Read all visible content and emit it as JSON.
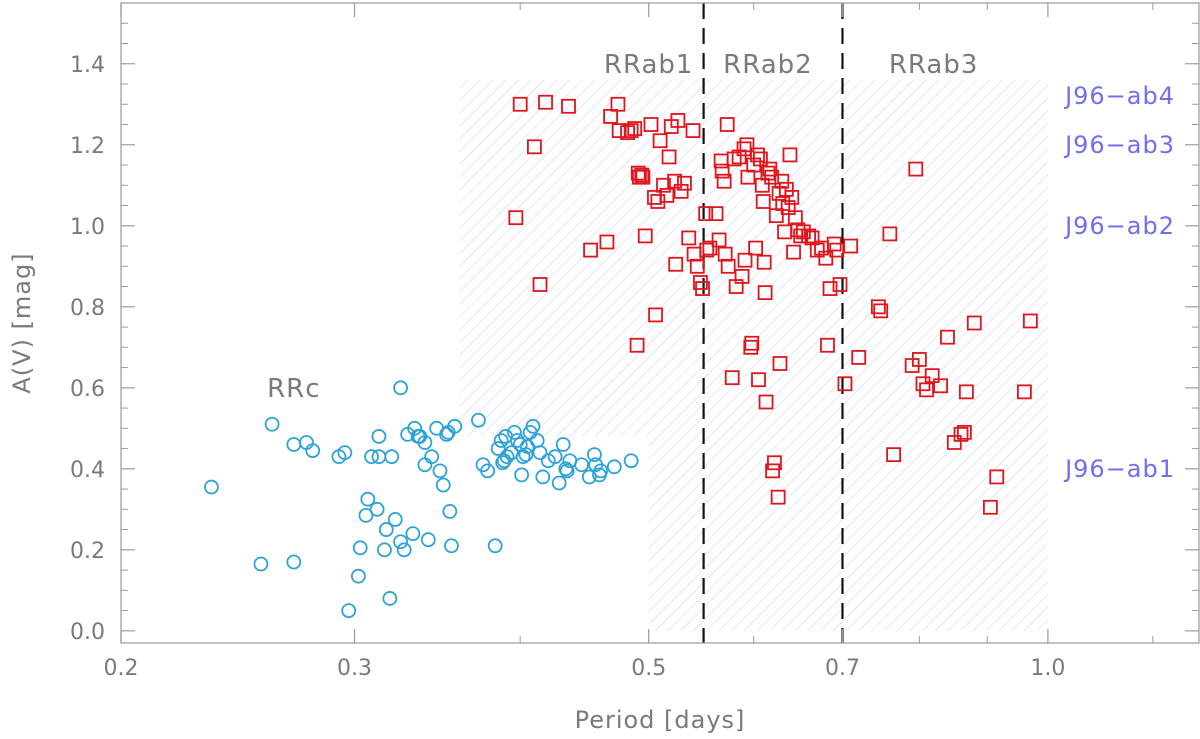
{
  "chart_data": {
    "type": "scatter",
    "xlabel": "Period [days]",
    "ylabel": "A(V) [mag]",
    "x_scale": "log",
    "xlim": [
      0.2,
      1.3
    ],
    "ylim": [
      -0.03,
      1.55
    ],
    "x_ticks": [
      0.2,
      0.3,
      0.5,
      0.7,
      1.0
    ],
    "x_tick_labels": [
      "0.2",
      "0.3",
      "0.5",
      "0.7",
      "1.0"
    ],
    "y_ticks": [
      0.0,
      0.2,
      0.4,
      0.6,
      0.8,
      1.0,
      1.2,
      1.4
    ],
    "y_tick_labels": [
      "0.0",
      "0.2",
      "0.4",
      "0.6",
      "0.8",
      "1.0",
      "1.2",
      "1.4"
    ],
    "vlines": [
      0.55,
      0.7
    ],
    "class_labels": [
      {
        "text": "RRab1",
        "x": 0.5,
        "y": 1.4
      },
      {
        "text": "RRab2",
        "x": 0.615,
        "y": 1.4
      },
      {
        "text": "RRab3",
        "x": 0.82,
        "y": 1.4
      },
      {
        "text": "RRc",
        "x": 0.27,
        "y": 0.6
      }
    ],
    "regions": [
      {
        "label": "J96−ab4",
        "x": [
          0.36,
          1.0
        ],
        "y": [
          1.24,
          1.36
        ],
        "label_y": 1.32
      },
      {
        "label": "J96−ab3",
        "x": [
          0.36,
          1.0
        ],
        "y": [
          1.12,
          1.24
        ],
        "label_y": 1.2
      },
      {
        "label": "J96−ab2",
        "x": [
          0.36,
          1.0
        ],
        "y": [
          0.8,
          1.12
        ],
        "label_y": 1.0
      },
      {
        "label": "J96−ab1",
        "x": [
          0.36,
          1.0
        ],
        "y": [
          0.8,
          1.12
        ],
        "label_y": 0.4
      }
    ],
    "ab1_region": {
      "x_from": 0.36,
      "x_knee": 0.5,
      "x_to": 1.0,
      "y_top": 0.8,
      "y_knee": 0.48,
      "y_bottom": 0.0
    },
    "series": [
      {
        "marker": "circle",
        "color": "#2ca3d8",
        "points": [
          [
            0.234,
            0.355
          ],
          [
            0.255,
            0.165
          ],
          [
            0.26,
            0.51
          ],
          [
            0.27,
            0.17
          ],
          [
            0.27,
            0.46
          ],
          [
            0.276,
            0.465
          ],
          [
            0.279,
            0.445
          ],
          [
            0.292,
            0.43
          ],
          [
            0.295,
            0.44
          ],
          [
            0.297,
            0.05
          ],
          [
            0.302,
            0.135
          ],
          [
            0.303,
            0.205
          ],
          [
            0.306,
            0.285
          ],
          [
            0.307,
            0.325
          ],
          [
            0.309,
            0.43
          ],
          [
            0.312,
            0.3
          ],
          [
            0.313,
            0.43
          ],
          [
            0.313,
            0.48
          ],
          [
            0.316,
            0.2
          ],
          [
            0.317,
            0.25
          ],
          [
            0.319,
            0.08
          ],
          [
            0.32,
            0.43
          ],
          [
            0.322,
            0.275
          ],
          [
            0.325,
            0.6
          ],
          [
            0.325,
            0.22
          ],
          [
            0.327,
            0.2
          ],
          [
            0.329,
            0.485
          ],
          [
            0.332,
            0.24
          ],
          [
            0.333,
            0.5
          ],
          [
            0.335,
            0.48
          ],
          [
            0.339,
            0.465
          ],
          [
            0.339,
            0.41
          ],
          [
            0.341,
            0.225
          ],
          [
            0.343,
            0.43
          ],
          [
            0.346,
            0.5
          ],
          [
            0.348,
            0.395
          ],
          [
            0.35,
            0.36
          ],
          [
            0.352,
            0.485
          ],
          [
            0.353,
            0.49
          ],
          [
            0.354,
            0.295
          ],
          [
            0.355,
            0.21
          ],
          [
            0.357,
            0.505
          ],
          [
            0.372,
            0.52
          ],
          [
            0.375,
            0.41
          ],
          [
            0.378,
            0.395
          ],
          [
            0.383,
            0.21
          ],
          [
            0.385,
            0.45
          ],
          [
            0.387,
            0.47
          ],
          [
            0.388,
            0.415
          ],
          [
            0.39,
            0.48
          ],
          [
            0.391,
            0.43
          ],
          [
            0.394,
            0.44
          ],
          [
            0.396,
            0.49
          ],
          [
            0.398,
            0.47
          ],
          [
            0.4,
            0.46
          ],
          [
            0.402,
            0.43
          ],
          [
            0.404,
            0.435
          ],
          [
            0.405,
            0.455
          ],
          [
            0.407,
            0.49
          ],
          [
            0.409,
            0.505
          ],
          [
            0.412,
            0.47
          ],
          [
            0.414,
            0.44
          ],
          [
            0.416,
            0.38
          ],
          [
            0.42,
            0.42
          ],
          [
            0.425,
            0.43
          ],
          [
            0.428,
            0.365
          ],
          [
            0.431,
            0.46
          ],
          [
            0.433,
            0.4
          ],
          [
            0.434,
            0.395
          ],
          [
            0.436,
            0.42
          ],
          [
            0.445,
            0.41
          ],
          [
            0.451,
            0.38
          ],
          [
            0.455,
            0.435
          ],
          [
            0.456,
            0.41
          ],
          [
            0.459,
            0.385
          ],
          [
            0.46,
            0.395
          ],
          [
            0.401,
            0.385
          ],
          [
            0.471,
            0.405
          ],
          [
            0.485,
            0.42
          ],
          [
            0.389,
            0.42
          ],
          [
            0.336,
            0.48
          ]
        ]
      },
      {
        "marker": "square",
        "color": "#e0151b",
        "points": [
          [
            0.4,
            1.3
          ],
          [
            0.41,
            1.195
          ],
          [
            0.414,
            0.855
          ],
          [
            0.397,
            1.02
          ],
          [
            0.418,
            1.305
          ],
          [
            0.435,
            1.295
          ],
          [
            0.452,
            0.94
          ],
          [
            0.465,
            0.96
          ],
          [
            0.468,
            1.27
          ],
          [
            0.474,
            1.3
          ],
          [
            0.475,
            1.235
          ],
          [
            0.482,
            1.23
          ],
          [
            0.485,
            1.235
          ],
          [
            0.488,
            1.24
          ],
          [
            0.49,
            0.705
          ],
          [
            0.491,
            1.13
          ],
          [
            0.492,
            1.12
          ],
          [
            0.494,
            1.125
          ],
          [
            0.495,
            1.12
          ],
          [
            0.497,
            0.975
          ],
          [
            0.502,
            1.25
          ],
          [
            0.505,
            1.07
          ],
          [
            0.506,
            0.78
          ],
          [
            0.508,
            1.06
          ],
          [
            0.51,
            1.21
          ],
          [
            0.513,
            1.1
          ],
          [
            0.516,
            1.075
          ],
          [
            0.518,
            1.17
          ],
          [
            0.52,
            1.245
          ],
          [
            0.523,
            1.11
          ],
          [
            0.524,
            0.905
          ],
          [
            0.526,
            1.26
          ],
          [
            0.529,
            1.085
          ],
          [
            0.532,
            1.105
          ],
          [
            0.536,
            0.97
          ],
          [
            0.54,
            1.235
          ],
          [
            0.541,
            0.93
          ],
          [
            0.544,
            0.9
          ],
          [
            0.547,
            0.86
          ],
          [
            0.549,
            0.845
          ],
          [
            0.552,
            1.03
          ],
          [
            0.553,
            0.94
          ],
          [
            0.556,
            0.945
          ],
          [
            0.562,
            1.03
          ],
          [
            0.565,
            0.965
          ],
          [
            0.567,
            1.16
          ],
          [
            0.568,
            1.135
          ],
          [
            0.57,
            1.11
          ],
          [
            0.571,
            0.93
          ],
          [
            0.573,
            1.25
          ],
          [
            0.574,
            0.9
          ],
          [
            0.578,
            0.625
          ],
          [
            0.58,
            1.165
          ],
          [
            0.582,
            0.85
          ],
          [
            0.585,
            1.17
          ],
          [
            0.588,
            0.875
          ],
          [
            0.59,
            1.19
          ],
          [
            0.591,
            0.915
          ],
          [
            0.593,
            1.2
          ],
          [
            0.594,
            1.12
          ],
          [
            0.597,
            0.7
          ],
          [
            0.598,
            0.71
          ],
          [
            0.6,
            1.15
          ],
          [
            0.602,
            0.945
          ],
          [
            0.604,
            1.175
          ],
          [
            0.605,
            0.62
          ],
          [
            0.607,
            1.165
          ],
          [
            0.609,
            1.1
          ],
          [
            0.61,
            1.06
          ],
          [
            0.611,
            0.91
          ],
          [
            0.612,
            0.835
          ],
          [
            0.613,
            0.565
          ],
          [
            0.615,
            1.13
          ],
          [
            0.617,
            1.14
          ],
          [
            0.619,
            1.12
          ],
          [
            0.62,
            0.395
          ],
          [
            0.622,
            0.415
          ],
          [
            0.624,
            1.025
          ],
          [
            0.626,
            0.33
          ],
          [
            0.627,
            1.08
          ],
          [
            0.628,
            0.66
          ],
          [
            0.63,
            1.11
          ],
          [
            0.631,
            1.055
          ],
          [
            0.633,
            0.985
          ],
          [
            0.635,
            1.09
          ],
          [
            0.637,
            1.045
          ],
          [
            0.639,
            1.175
          ],
          [
            0.641,
            1.07
          ],
          [
            0.643,
            0.935
          ],
          [
            0.645,
            1.02
          ],
          [
            0.648,
            0.99
          ],
          [
            0.651,
            0.975
          ],
          [
            0.654,
            0.985
          ],
          [
            0.66,
            0.975
          ],
          [
            0.664,
            0.97
          ],
          [
            0.67,
            0.94
          ],
          [
            0.675,
            0.945
          ],
          [
            0.68,
            0.92
          ],
          [
            0.682,
            0.705
          ],
          [
            0.685,
            0.845
          ],
          [
            0.69,
            0.955
          ],
          [
            0.693,
            0.94
          ],
          [
            0.697,
            0.855
          ],
          [
            0.703,
            0.61
          ],
          [
            0.71,
            0.95
          ],
          [
            0.72,
            0.675
          ],
          [
            0.745,
            0.8
          ],
          [
            0.748,
            0.79
          ],
          [
            0.76,
            0.98
          ],
          [
            0.765,
            0.435
          ],
          [
            0.79,
            0.655
          ],
          [
            0.795,
            1.14
          ],
          [
            0.8,
            0.67
          ],
          [
            0.805,
            0.61
          ],
          [
            0.81,
            0.595
          ],
          [
            0.818,
            0.63
          ],
          [
            0.83,
            0.605
          ],
          [
            0.84,
            0.725
          ],
          [
            0.85,
            0.465
          ],
          [
            0.86,
            0.485
          ],
          [
            0.865,
            0.49
          ],
          [
            0.868,
            0.59
          ],
          [
            0.88,
            0.76
          ],
          [
            0.905,
            0.305
          ],
          [
            0.915,
            0.38
          ],
          [
            0.96,
            0.59
          ],
          [
            0.97,
            0.765
          ]
        ]
      }
    ]
  }
}
